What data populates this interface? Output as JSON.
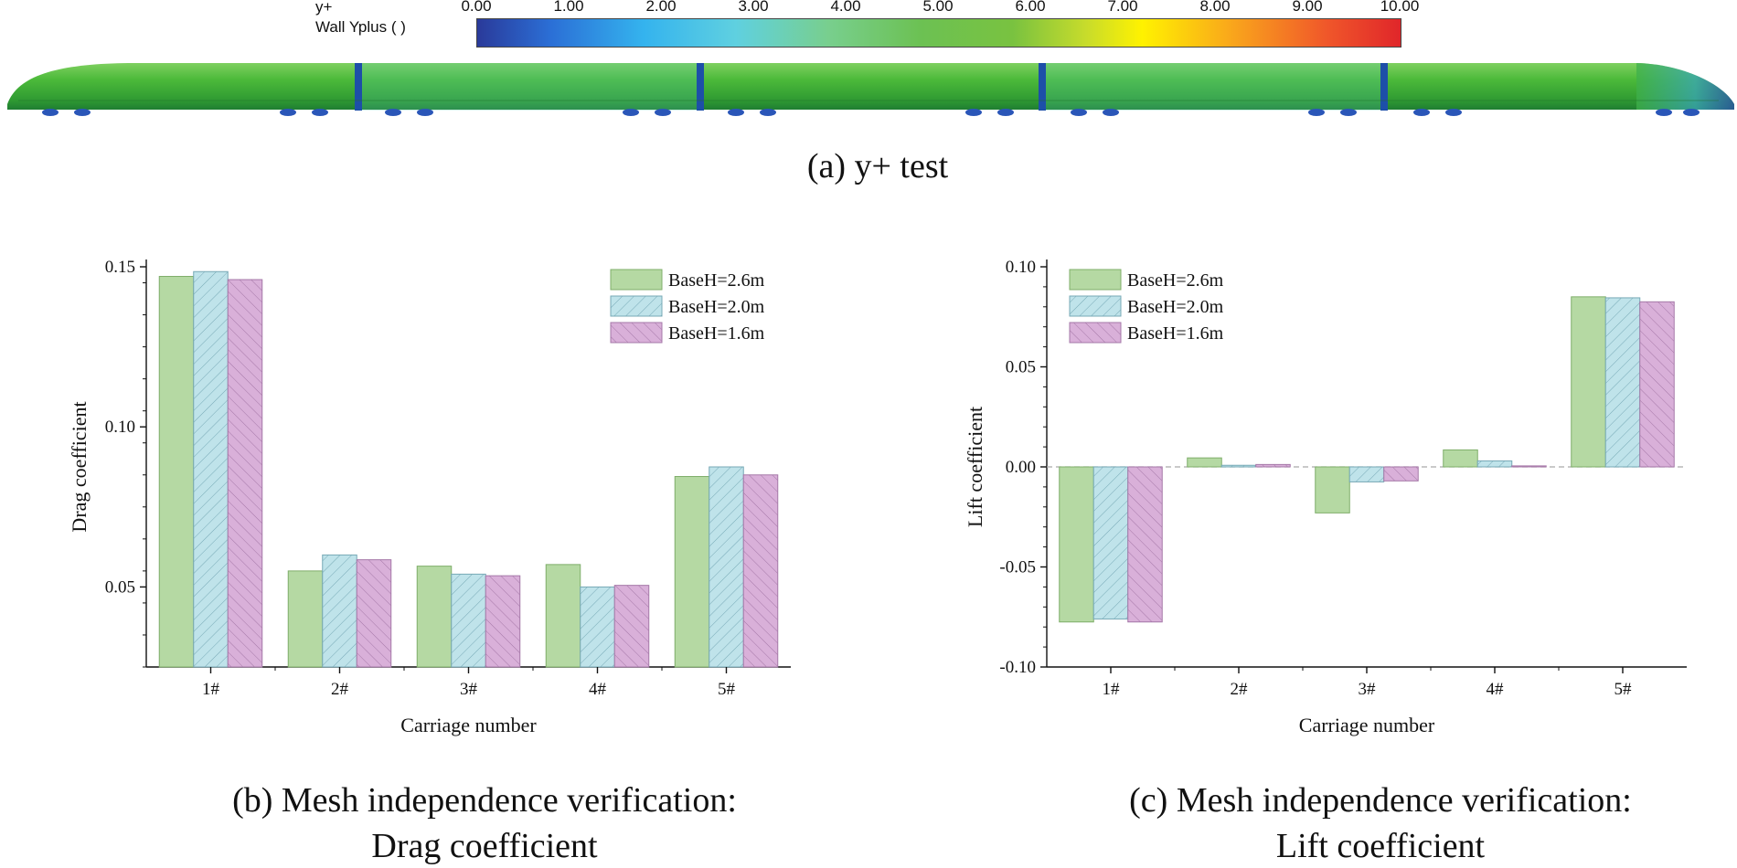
{
  "colorbar": {
    "var_short": "y+",
    "var_long": "Wall Yplus (  )",
    "ticks": [
      "0.00",
      "1.00",
      "2.00",
      "3.00",
      "4.00",
      "5.00",
      "6.00",
      "7.00",
      "8.00",
      "9.00",
      "10.00"
    ]
  },
  "captions": {
    "a": "(a) y+ test",
    "b_line1": "(b) Mesh independence verification:",
    "b_line2": "Drag coefficient",
    "c_line1": "(c) Mesh independence verification:",
    "c_line2": "Lift coefficient"
  },
  "colors": {
    "s1_fill": "#b5d9a3",
    "s1_stroke": "#7fae6a",
    "s2_fill": "#bfe3ea",
    "s2_stroke": "#77a9b6",
    "s3_fill": "#d9b0d9",
    "s3_stroke": "#a578a8"
  },
  "chart_data": [
    {
      "type": "bar",
      "categories": [
        "1#",
        "2#",
        "3#",
        "4#",
        "5#"
      ],
      "series": [
        {
          "name": "BaseH=2.6m",
          "values": [
            0.147,
            0.055,
            0.0565,
            0.057,
            0.0845
          ]
        },
        {
          "name": "BaseH=2.0m",
          "values": [
            0.1485,
            0.06,
            0.054,
            0.05,
            0.0875
          ]
        },
        {
          "name": "BaseH=1.6m",
          "values": [
            0.146,
            0.0585,
            0.0535,
            0.0505,
            0.085
          ]
        }
      ],
      "xlabel": "Carriage number",
      "ylabel": "Drag coefficient",
      "ylim": [
        0.025,
        0.15
      ],
      "yticks": [
        "0.05",
        "0.10",
        "0.15"
      ],
      "legend_position": "top-right"
    },
    {
      "type": "bar",
      "categories": [
        "1#",
        "2#",
        "3#",
        "4#",
        "5#"
      ],
      "series": [
        {
          "name": "BaseH=2.6m",
          "values": [
            -0.0775,
            0.0045,
            -0.023,
            0.0085,
            0.085
          ]
        },
        {
          "name": "BaseH=2.0m",
          "values": [
            -0.076,
            0.0008,
            -0.0075,
            0.003,
            0.0845
          ]
        },
        {
          "name": "BaseH=1.6m",
          "values": [
            -0.0775,
            0.0012,
            -0.007,
            0.0005,
            0.0825
          ]
        }
      ],
      "xlabel": "Carriage number",
      "ylabel": "Lift coefficient",
      "ylim": [
        -0.1,
        0.1
      ],
      "yticks": [
        "-0.10",
        "-0.05",
        "0.00",
        "0.05",
        "0.10"
      ],
      "legend_position": "top-left"
    }
  ]
}
